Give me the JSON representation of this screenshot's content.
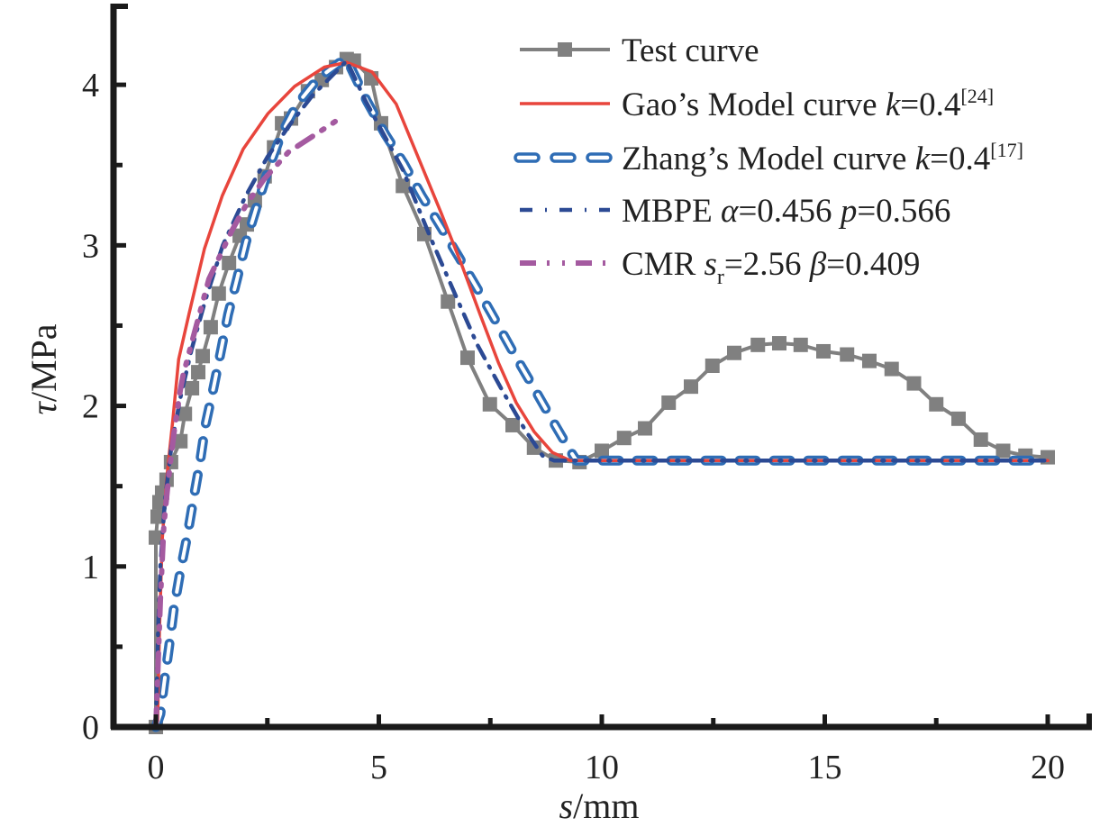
{
  "chart_data": {
    "type": "line",
    "title": "",
    "xlabel": {
      "var": "s",
      "unit": "/mm"
    },
    "ylabel": {
      "var": "τ",
      "unit": "/MPa"
    },
    "xlim": [
      -0.95,
      20.95
    ],
    "ylim": [
      0,
      4.5
    ],
    "xticks": [
      0,
      5,
      10,
      15,
      20
    ],
    "xticks_minor": [
      2.5,
      7.5,
      12.5,
      17.5
    ],
    "yticks": [
      0,
      1,
      2,
      3,
      4
    ],
    "yticks_minor": [
      0.5,
      1.5,
      2.5,
      3.5
    ],
    "grid": false,
    "legend_position": "top-right",
    "series": [
      {
        "name": "Test curve",
        "legend": {
          "parts": [
            {
              "t": "Test curve"
            }
          ]
        },
        "color": "#808080",
        "style": "solid-square-markers",
        "x": [
          0,
          0,
          0.04,
          0.08,
          0.14,
          0.24,
          0.34,
          0.55,
          0.65,
          0.81,
          0.95,
          1.05,
          1.23,
          1.41,
          1.64,
          1.88,
          2.04,
          2.22,
          2.44,
          2.65,
          2.83,
          3.03,
          3.41,
          3.72,
          4.04,
          4.28,
          4.44,
          4.83,
          5.05,
          5.54,
          6.02,
          6.55,
          6.99,
          7.49,
          8.0,
          8.48,
          8.97,
          9.5,
          10.0,
          10.5,
          10.97,
          11.5,
          12.0,
          12.48,
          12.97,
          13.5,
          13.98,
          14.46,
          14.97,
          15.5,
          16.0,
          16.5,
          17.0,
          17.5,
          18.0,
          18.5,
          19.0,
          19.5,
          20.0
        ],
        "y": [
          0,
          1.18,
          1.31,
          1.4,
          1.46,
          1.54,
          1.65,
          1.78,
          1.95,
          2.11,
          2.21,
          2.31,
          2.49,
          2.7,
          2.89,
          3.06,
          3.13,
          3.28,
          3.43,
          3.61,
          3.76,
          3.79,
          3.96,
          4.03,
          4.11,
          4.16,
          4.15,
          4.04,
          3.76,
          3.37,
          3.07,
          2.65,
          2.3,
          2.01,
          1.88,
          1.74,
          1.66,
          1.65,
          1.72,
          1.8,
          1.86,
          2.02,
          2.12,
          2.25,
          2.33,
          2.38,
          2.39,
          2.38,
          2.34,
          2.32,
          2.28,
          2.23,
          2.14,
          2.01,
          1.92,
          1.79,
          1.72,
          1.69,
          1.68
        ]
      },
      {
        "name": "Gao's Model curve k=0.4[24]",
        "legend": {
          "parts": [
            {
              "t": "Gao’s Model curve "
            },
            {
              "t": "k",
              "i": true
            },
            {
              "t": "=0.4"
            },
            {
              "t": "[24]",
              "sup": true
            }
          ]
        },
        "color": "#e8453c",
        "style": "solid",
        "x": [
          0,
          0.04,
          0.08,
          0.14,
          0.24,
          0.38,
          0.51,
          0.75,
          1.09,
          1.49,
          1.96,
          2.51,
          3.11,
          3.78,
          4.28,
          4.85,
          5.39,
          5.94,
          6.4,
          6.87,
          7.27,
          7.68,
          8.08,
          8.48,
          8.89,
          9.29,
          9.6,
          20.0
        ],
        "y": [
          0,
          0.04,
          0.6,
          1.16,
          1.54,
          1.91,
          2.29,
          2.58,
          2.98,
          3.31,
          3.6,
          3.82,
          3.99,
          4.11,
          4.14,
          4.08,
          3.88,
          3.51,
          3.2,
          2.87,
          2.57,
          2.27,
          2.02,
          1.84,
          1.71,
          1.66,
          1.66,
          1.66
        ]
      },
      {
        "name": "Zhang's Model curve k=0.4[17]",
        "legend": {
          "parts": [
            {
              "t": "Zhang’s Model curve "
            },
            {
              "t": "k",
              "i": true
            },
            {
              "t": "=0.4"
            },
            {
              "t": "[17]",
              "sup": true
            }
          ]
        },
        "color": "#2f6db5",
        "style": "hollow-dash",
        "x": [
          0,
          0.1,
          0.18,
          0.3,
          0.4,
          0.55,
          0.71,
          0.85,
          0.99,
          1.11,
          1.29,
          1.45,
          1.62,
          1.82,
          2.02,
          2.26,
          2.53,
          2.81,
          3.17,
          3.64,
          4.18,
          4.28,
          4.73,
          5.15,
          5.56,
          5.96,
          6.4,
          6.81,
          7.25,
          7.66,
          8.06,
          8.46,
          8.89,
          9.29,
          9.43,
          20.0
        ],
        "y": [
          0,
          0.08,
          0.26,
          0.51,
          0.73,
          0.97,
          1.2,
          1.43,
          1.65,
          1.88,
          2.11,
          2.33,
          2.57,
          2.79,
          3.02,
          3.24,
          3.48,
          3.69,
          3.88,
          4.04,
          4.15,
          4.16,
          3.9,
          3.69,
          3.51,
          3.31,
          3.11,
          2.92,
          2.71,
          2.51,
          2.31,
          2.12,
          1.91,
          1.72,
          1.66,
          1.66
        ]
      },
      {
        "name": "MBPE α=0.456 p=0.566",
        "legend": {
          "parts": [
            {
              "t": "MBPE "
            },
            {
              "t": "α",
              "i": true
            },
            {
              "t": "=0.456 "
            },
            {
              "t": "p",
              "i": true
            },
            {
              "t": "=0.566"
            }
          ]
        },
        "color": "#2c4a94",
        "style": "dash-dot",
        "x": [
          0,
          0.05,
          0.1,
          0.2,
          0.35,
          0.55,
          0.8,
          1.1,
          1.5,
          2.0,
          2.5,
          3.0,
          3.5,
          4.0,
          4.28,
          4.7,
          5.19,
          5.54,
          6.14,
          6.67,
          7.21,
          7.76,
          8.28,
          8.67,
          8.93,
          20.0
        ],
        "y": [
          0,
          0.6,
          1.0,
          1.4,
          1.75,
          2.05,
          2.35,
          2.65,
          3.0,
          3.3,
          3.55,
          3.75,
          3.93,
          4.07,
          4.15,
          3.9,
          3.65,
          3.47,
          3.06,
          2.72,
          2.38,
          2.1,
          1.85,
          1.69,
          1.66,
          1.66
        ]
      },
      {
        "name": "CMR sr=2.56 β=0.409",
        "legend": {
          "parts": [
            {
              "t": "CMR "
            },
            {
              "t": "s",
              "i": true
            },
            {
              "t": "r",
              "sub": true
            },
            {
              "t": "=2.56 "
            },
            {
              "t": "β",
              "i": true
            },
            {
              "t": "=0.409"
            }
          ]
        },
        "color": "#a45aa0",
        "style": "dash-dot-dot",
        "x": [
          0,
          0.1,
          0.18,
          0.28,
          0.4,
          0.55,
          0.61,
          0.81,
          1.19,
          1.7,
          2.02,
          2.42,
          2.97,
          3.52,
          4.18
        ],
        "y": [
          0,
          0.79,
          1.26,
          1.54,
          1.82,
          2.1,
          2.19,
          2.4,
          2.79,
          3.09,
          3.25,
          3.41,
          3.58,
          3.68,
          3.8
        ]
      }
    ]
  }
}
